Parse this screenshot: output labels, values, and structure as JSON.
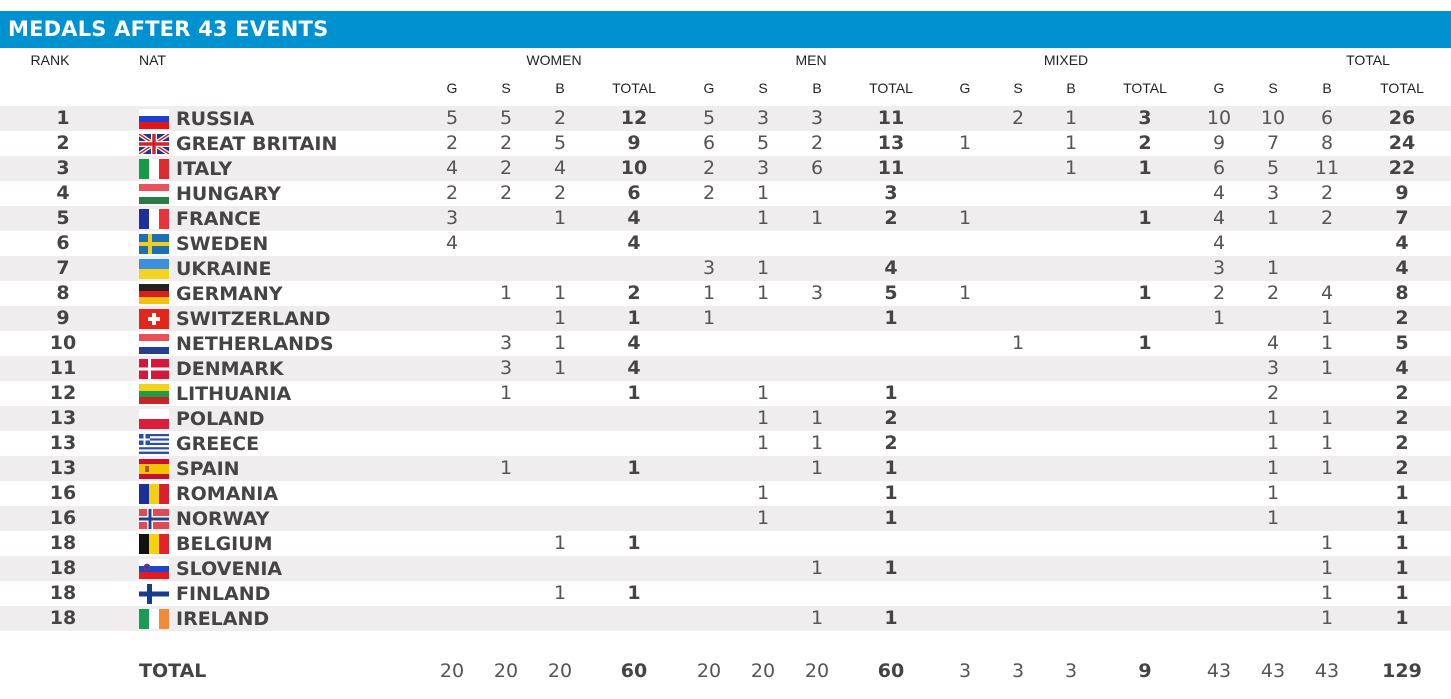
{
  "title": "MEDALS AFTER 43 EVENTS",
  "colors": {
    "title_bar": "#0092d0",
    "row_alt": "#efeded",
    "text": "#4a4a4a"
  },
  "header": {
    "rank": "RANK",
    "nat": "NAT",
    "groups": [
      "WOMEN",
      "MEN",
      "MIXED",
      "TOTAL"
    ],
    "sub": [
      "G",
      "S",
      "B",
      "TOTAL"
    ]
  },
  "rows": [
    {
      "rank": "1",
      "nat": "RUSSIA",
      "flag": "russia-flag",
      "v": [
        "5",
        "5",
        "2",
        "12",
        "5",
        "3",
        "3",
        "11",
        "",
        "2",
        "1",
        "3",
        "10",
        "10",
        "6",
        "26"
      ]
    },
    {
      "rank": "2",
      "nat": "GREAT BRITAIN",
      "flag": "great-britain-flag",
      "v": [
        "2",
        "2",
        "5",
        "9",
        "6",
        "5",
        "2",
        "13",
        "1",
        "",
        "1",
        "2",
        "9",
        "7",
        "8",
        "24"
      ]
    },
    {
      "rank": "3",
      "nat": "ITALY",
      "flag": "italy-flag",
      "v": [
        "4",
        "2",
        "4",
        "10",
        "2",
        "3",
        "6",
        "11",
        "",
        "",
        "1",
        "1",
        "6",
        "5",
        "11",
        "22"
      ]
    },
    {
      "rank": "4",
      "nat": "HUNGARY",
      "flag": "hungary-flag",
      "v": [
        "2",
        "2",
        "2",
        "6",
        "2",
        "1",
        "",
        "3",
        "",
        "",
        "",
        "",
        "4",
        "3",
        "2",
        "9"
      ]
    },
    {
      "rank": "5",
      "nat": "FRANCE",
      "flag": "france-flag",
      "v": [
        "3",
        "",
        "1",
        "4",
        "",
        "1",
        "1",
        "2",
        "1",
        "",
        "",
        "1",
        "4",
        "1",
        "2",
        "7"
      ]
    },
    {
      "rank": "6",
      "nat": "SWEDEN",
      "flag": "sweden-flag",
      "v": [
        "4",
        "",
        "",
        "4",
        "",
        "",
        "",
        "",
        "",
        "",
        "",
        "",
        "4",
        "",
        "",
        "4"
      ]
    },
    {
      "rank": "7",
      "nat": "UKRAINE",
      "flag": "ukraine-flag",
      "v": [
        "",
        "",
        "",
        "",
        "3",
        "1",
        "",
        "4",
        "",
        "",
        "",
        "",
        "3",
        "1",
        "",
        "4"
      ]
    },
    {
      "rank": "8",
      "nat": "GERMANY",
      "flag": "germany-flag",
      "v": [
        "",
        "1",
        "1",
        "2",
        "1",
        "1",
        "3",
        "5",
        "1",
        "",
        "",
        "1",
        "2",
        "2",
        "4",
        "8"
      ]
    },
    {
      "rank": "9",
      "nat": "SWITZERLAND",
      "flag": "switzerland-flag",
      "v": [
        "",
        "",
        "1",
        "1",
        "1",
        "",
        "",
        "1",
        "",
        "",
        "",
        "",
        "1",
        "",
        "1",
        "2"
      ]
    },
    {
      "rank": "10",
      "nat": "NETHERLANDS",
      "flag": "netherlands-flag",
      "v": [
        "",
        "3",
        "1",
        "4",
        "",
        "",
        "",
        "",
        "",
        "1",
        "",
        "1",
        "",
        "4",
        "1",
        "5"
      ]
    },
    {
      "rank": "11",
      "nat": "DENMARK",
      "flag": "denmark-flag",
      "v": [
        "",
        "3",
        "1",
        "4",
        "",
        "",
        "",
        "",
        "",
        "",
        "",
        "",
        "",
        "3",
        "1",
        "4"
      ]
    },
    {
      "rank": "12",
      "nat": "LITHUANIA",
      "flag": "lithuania-flag",
      "v": [
        "",
        "1",
        "",
        "1",
        "",
        "1",
        "",
        "1",
        "",
        "",
        "",
        "",
        "",
        "2",
        "",
        "2"
      ]
    },
    {
      "rank": "13",
      "nat": "POLAND",
      "flag": "poland-flag",
      "v": [
        "",
        "",
        "",
        "",
        "",
        "1",
        "1",
        "2",
        "",
        "",
        "",
        "",
        "",
        "1",
        "1",
        "2"
      ]
    },
    {
      "rank": "13",
      "nat": "GREECE",
      "flag": "greece-flag",
      "v": [
        "",
        "",
        "",
        "",
        "",
        "1",
        "1",
        "2",
        "",
        "",
        "",
        "",
        "",
        "1",
        "1",
        "2"
      ]
    },
    {
      "rank": "13",
      "nat": "SPAIN",
      "flag": "spain-flag",
      "v": [
        "",
        "1",
        "",
        "1",
        "",
        "",
        "1",
        "1",
        "",
        "",
        "",
        "",
        "",
        "1",
        "1",
        "2"
      ]
    },
    {
      "rank": "16",
      "nat": "ROMANIA",
      "flag": "romania-flag",
      "v": [
        "",
        "",
        "",
        "",
        "",
        "1",
        "",
        "1",
        "",
        "",
        "",
        "",
        "",
        "1",
        "",
        "1"
      ]
    },
    {
      "rank": "16",
      "nat": "NORWAY",
      "flag": "norway-flag",
      "v": [
        "",
        "",
        "",
        "",
        "",
        "1",
        "",
        "1",
        "",
        "",
        "",
        "",
        "",
        "1",
        "",
        "1"
      ]
    },
    {
      "rank": "18",
      "nat": "BELGIUM",
      "flag": "belgium-flag",
      "v": [
        "",
        "",
        "1",
        "1",
        "",
        "",
        "",
        "",
        "",
        "",
        "",
        "",
        "",
        "",
        "1",
        "1"
      ]
    },
    {
      "rank": "18",
      "nat": "SLOVENIA",
      "flag": "slovenia-flag",
      "v": [
        "",
        "",
        "",
        "",
        "",
        "",
        "1",
        "1",
        "",
        "",
        "",
        "",
        "",
        "",
        "1",
        "1"
      ]
    },
    {
      "rank": "18",
      "nat": "FINLAND",
      "flag": "finland-flag",
      "v": [
        "",
        "",
        "1",
        "1",
        "",
        "",
        "",
        "",
        "",
        "",
        "",
        "",
        "",
        "",
        "1",
        "1"
      ]
    },
    {
      "rank": "18",
      "nat": "IRELAND",
      "flag": "ireland-flag",
      "v": [
        "",
        "",
        "",
        "",
        "",
        "",
        "1",
        "1",
        "",
        "",
        "",
        "",
        "",
        "",
        "1",
        "1"
      ]
    }
  ],
  "total_row": {
    "label": "TOTAL",
    "v": [
      "20",
      "20",
      "20",
      "60",
      "20",
      "20",
      "20",
      "60",
      "3",
      "3",
      "3",
      "9",
      "43",
      "43",
      "43",
      "129"
    ]
  }
}
